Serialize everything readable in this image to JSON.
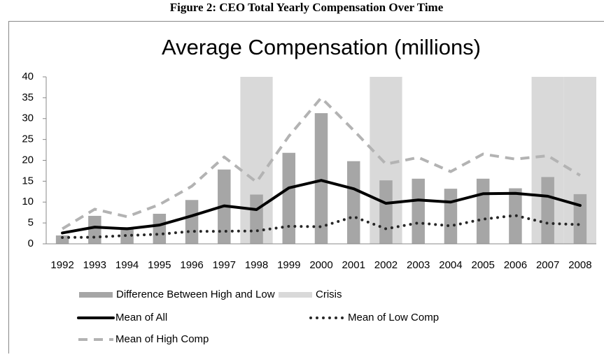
{
  "caption": "Figure 2: CEO Total Yearly Compensation Over Time",
  "chart_data": {
    "type": "bar-line",
    "title": "Average Compensation (millions)",
    "categories": [
      "1992",
      "1993",
      "1994",
      "1995",
      "1996",
      "1997",
      "1998",
      "1999",
      "2000",
      "2001",
      "2002",
      "2003",
      "2004",
      "2005",
      "2006",
      "2007",
      "2008"
    ],
    "ylim": [
      0,
      40
    ],
    "yticks": [
      0,
      5,
      10,
      15,
      20,
      25,
      30,
      35,
      40
    ],
    "grid": false,
    "legend": "bottom",
    "series": [
      {
        "name": "Difference Between High and Low",
        "kind": "bar",
        "color": "#a6a6a6",
        "values": [
          2,
          6.7,
          4,
          7.2,
          10.5,
          17.8,
          11.8,
          21.8,
          31.3,
          19.8,
          15.2,
          15.6,
          13.2,
          15.6,
          13.3,
          16,
          11.9
        ]
      },
      {
        "name": "Crisis",
        "kind": "span",
        "color": "#d9d9d9",
        "values": [
          null,
          null,
          null,
          null,
          null,
          null,
          40,
          null,
          null,
          null,
          40,
          null,
          null,
          null,
          null,
          40,
          40
        ]
      },
      {
        "name": "Mean of All",
        "kind": "line",
        "dash": "solid",
        "color": "#000000",
        "values": [
          2.6,
          4,
          3.6,
          4.5,
          6.7,
          9.1,
          8.2,
          13.4,
          15.2,
          13.2,
          9.7,
          10.5,
          10,
          12,
          12.1,
          11.4,
          9.2
        ]
      },
      {
        "name": "Mean of Low Comp",
        "kind": "line",
        "dash": "dotted",
        "color": "#262626",
        "values": [
          1.5,
          1.6,
          2,
          2.3,
          3,
          3,
          3.1,
          4.2,
          4.1,
          6.5,
          3.6,
          5,
          4.3,
          5.9,
          6.8,
          4.9,
          4.6
        ]
      },
      {
        "name": "Mean of High Comp",
        "kind": "line",
        "dash": "dashed",
        "color": "#b3b3b3",
        "values": [
          3.6,
          8.3,
          6.5,
          9.4,
          13.8,
          20.8,
          14.8,
          25.8,
          35,
          27.2,
          19.1,
          20.7,
          17.3,
          21.5,
          20.3,
          21.1,
          16.4
        ]
      }
    ]
  }
}
